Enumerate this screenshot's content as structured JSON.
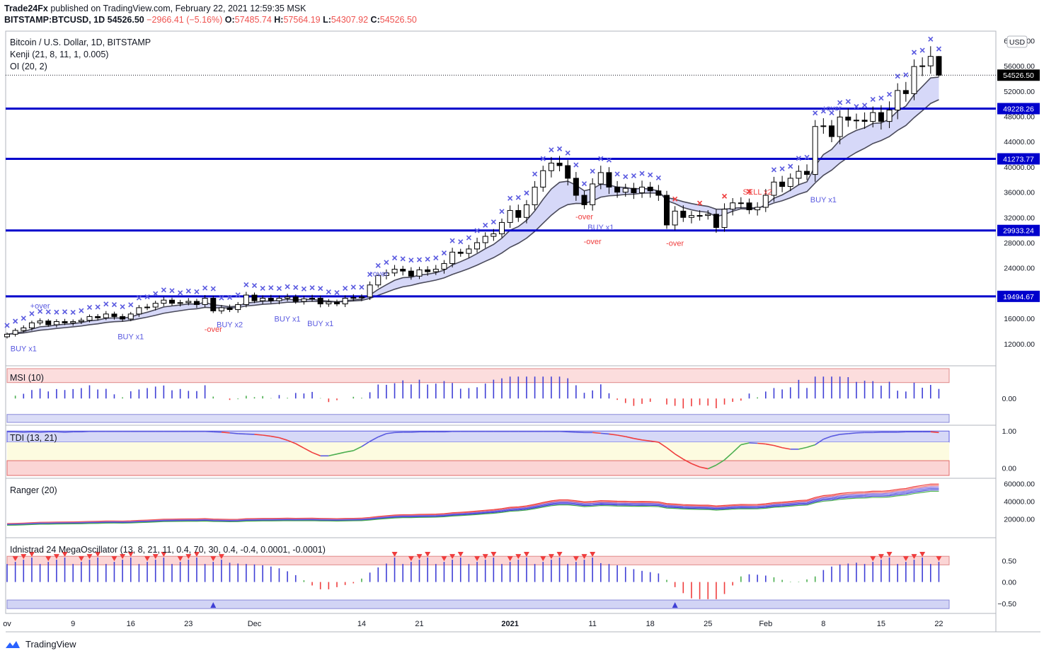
{
  "publisher": {
    "author": "Trade24Fx",
    "text": "published on TradingView.com, February 22, 2021 12:59:35 MSK"
  },
  "symbol_line": {
    "symbol": "BITSTAMP:BTCUSD, 1D",
    "last": "54526.50",
    "change": "−2966.41 (−5.16%)",
    "o_label": "O:",
    "o": "57485.74",
    "h_label": "H:",
    "h": "57564.19",
    "l_label": "L:",
    "l": "54307.92",
    "c_label": "C:",
    "c": "54526.50"
  },
  "legend": {
    "title": "Bitcoin / U.S. Dollar, 1D, BITSTAMP",
    "kenji": "Kenji (21, 8, 11, 1, 0.005)",
    "oi": "OI (20, 2)"
  },
  "panes": {
    "msi": "MSI (10)",
    "tdi": "TDI (13, 21)",
    "ranger": "Ranger (20)",
    "mega": "Idnistrad 24 MegaOscillator (13, 8, 21, 11, 0.4, 70, 30, 0.4, -0.4, 0.0001, -0.0001)"
  },
  "currency_badge": "USD",
  "price_badges": {
    "last": "54526.50",
    "levels": [
      "49228.26",
      "41273.77",
      "29933.24",
      "19494.67"
    ]
  },
  "annotations": [
    "BUY x1",
    "+over",
    "BUY x1",
    "-over",
    "BUY x2",
    "BUY x1",
    "BUY x1",
    "+over",
    "-over",
    "BUY x1",
    "-over",
    "-over",
    "SELL x2",
    "BUY x1",
    "+over"
  ],
  "footer": {
    "brand": "TradingView"
  },
  "colors": {
    "up": "#ffffff",
    "down": "#000000",
    "level_line": "#0000cc",
    "badge": "#0000cc",
    "blue_hist": "#3f3fd6",
    "red_hist": "#ef3d3d",
    "green_hist": "#4caf50"
  },
  "chart_data": [
    {
      "type": "candlestick",
      "name": "BITSTAMP:BTCUSD",
      "y_ticks": [
        12000,
        16000,
        20000,
        24000,
        28000,
        32000,
        36000,
        40000,
        44000,
        48000,
        52000,
        56000,
        60000
      ],
      "y_tick_labels": [
        "12000.00",
        "16000.00",
        "20000.00",
        "24000.00",
        "28000.00",
        "32000.00",
        "36000.00",
        "40000.00",
        "44000.00",
        "48000.00",
        "52000.00",
        "56000.00",
        "60000.00"
      ],
      "ylim": [
        8500,
        61500
      ],
      "x_ticks": [
        {
          "day": 0,
          "label": "ov"
        },
        {
          "day": 8,
          "label": "9"
        },
        {
          "day": 15,
          "label": "16"
        },
        {
          "day": 22,
          "label": "23"
        },
        {
          "day": 30,
          "label": "Dec"
        },
        {
          "day": 43,
          "label": "14"
        },
        {
          "day": 50,
          "label": "21"
        },
        {
          "day": 61,
          "label": "2021"
        },
        {
          "day": 71,
          "label": "11"
        },
        {
          "day": 78,
          "label": "18"
        },
        {
          "day": 85,
          "label": "25"
        },
        {
          "day": 92,
          "label": "Feb"
        },
        {
          "day": 99,
          "label": "8"
        },
        {
          "day": 106,
          "label": "15"
        },
        {
          "day": 113,
          "label": "22"
        }
      ],
      "horizontal_levels": [
        49228.26,
        41273.77,
        29933.24,
        19494.67
      ],
      "close": [
        13500,
        14100,
        14500,
        15300,
        15600,
        15000,
        15500,
        15300,
        15500,
        15700,
        16300,
        16100,
        16700,
        16300,
        15900,
        16700,
        17700,
        17800,
        18400,
        18900,
        18400,
        18500,
        18700,
        18200,
        19200,
        17200,
        17700,
        17400,
        18200,
        19700,
        18800,
        19200,
        18800,
        19200,
        19400,
        18700,
        19100,
        19200,
        18300,
        18600,
        18300,
        19200,
        19300,
        19400,
        21300,
        22800,
        23200,
        23800,
        23500,
        22700,
        23700,
        23400,
        23800,
        24700,
        26500,
        26300,
        27000,
        28000,
        29000,
        29400,
        31200,
        33100,
        32000,
        34000,
        36800,
        39400,
        40600,
        40200,
        38200,
        35500,
        34000,
        37300,
        39100,
        36800,
        36000,
        36600,
        35900,
        36800,
        36200,
        35500,
        30800,
        33000,
        32000,
        32300,
        32300,
        32500,
        30400,
        33300,
        34300,
        34300,
        33200,
        33600,
        35500,
        37600,
        36900,
        38200,
        39300,
        38800,
        46400,
        46500,
        44800,
        47900,
        47400,
        47400,
        47200,
        48600,
        47200,
        49000,
        52100,
        51600,
        55900,
        56000,
        57500,
        54526.5
      ],
      "tdi": [
        0.98,
        0.98,
        0.97,
        0.98,
        0.97,
        0.98,
        0.98,
        0.97,
        0.98,
        0.98,
        0.99,
        0.99,
        0.99,
        0.99,
        0.99,
        0.99,
        0.99,
        0.99,
        0.99,
        0.99,
        0.99,
        0.99,
        0.99,
        0.99,
        0.99,
        0.98,
        0.97,
        0.95,
        0.93,
        0.92,
        0.91,
        0.89,
        0.86,
        0.82,
        0.75,
        0.66,
        0.54,
        0.42,
        0.33,
        0.33,
        0.38,
        0.43,
        0.47,
        0.58,
        0.72,
        0.84,
        0.93,
        0.96,
        0.97,
        0.97,
        0.98,
        0.98,
        0.98,
        0.98,
        0.99,
        0.99,
        0.99,
        0.99,
        0.99,
        0.99,
        0.99,
        0.99,
        0.99,
        0.99,
        0.99,
        0.99,
        0.99,
        0.99,
        0.98,
        0.97,
        0.96,
        0.96,
        0.94,
        0.92,
        0.89,
        0.85,
        0.8,
        0.76,
        0.73,
        0.7,
        0.55,
        0.38,
        0.24,
        0.12,
        0.03,
        -0.02,
        0.08,
        0.22,
        0.42,
        0.63,
        0.68,
        0.67,
        0.65,
        0.61,
        0.55,
        0.51,
        0.51,
        0.56,
        0.63,
        0.78,
        0.86,
        0.91,
        0.93,
        0.95,
        0.96,
        0.96,
        0.97,
        0.97,
        0.97,
        0.98,
        0.98,
        0.98,
        0.98,
        0.96
      ],
      "msi_ylim": [
        -0.6,
        0.75
      ],
      "tdi_ylim": [
        -0.2,
        1.1
      ],
      "ranger_ticks": [
        20000,
        40000,
        60000
      ],
      "ranger_tick_labels": [
        "20000.00",
        "40000.00",
        "60000.00"
      ],
      "mega_ticks": [
        0.5,
        0,
        -0.5
      ],
      "mega_tick_labels": [
        "0.50",
        "0.00",
        "−0.50"
      ],
      "msi_ticks": [
        0
      ],
      "msi_tick_labels": [
        "0.00"
      ],
      "tdi_ticks": [
        1,
        0
      ],
      "tdi_tick_labels": [
        "1.00",
        "0.00"
      ]
    }
  ]
}
